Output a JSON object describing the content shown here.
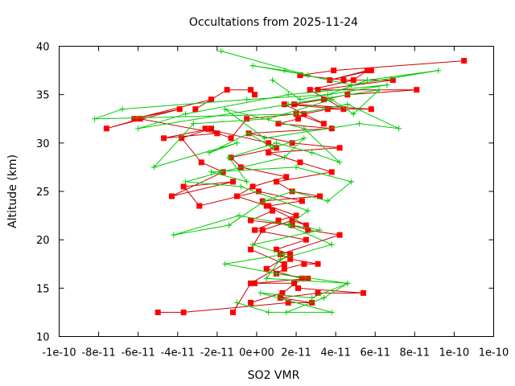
{
  "chart_data": {
    "type": "line",
    "title": "Occultations from 2025-11-24",
    "xlabel": "SO2 VMR",
    "ylabel": "Altitude (km)",
    "xlim": [
      -1e-10,
      1.2e-10
    ],
    "ylim": [
      10,
      40
    ],
    "x_ticks": [
      "-1e-10",
      "-8e-11",
      "-6e-11",
      "-4e-11",
      "-2e-11",
      "0e+00",
      "2e-11",
      "4e-11",
      "6e-11",
      "8e-11",
      "1e-10",
      "1e-10"
    ],
    "y_ticks": [
      "10",
      "15",
      "20",
      "25",
      "30",
      "35",
      "40"
    ],
    "grid": false,
    "legend": "none",
    "series": [
      {
        "marker": "square",
        "color": "#ff0000",
        "line_color": "#cc0000",
        "x": [
          -5e-11,
          -3.7e-11,
          1.6e-11,
          2.8e-11,
          1.2e-11,
          3.1e-11,
          5.4e-11,
          2.1e-11,
          1.9e-11,
          -1e-12,
          2.6e-11,
          1e-11,
          1.4e-11,
          2.4e-11,
          3.1e-11,
          1.7e-11,
          1.2e-11,
          4.2e-11,
          2.6e-11,
          1.8e-11,
          -3e-12,
          8e-12,
          3e-12,
          3.2e-11,
          1.8e-11,
          1e-11,
          3.8e-11,
          2.2e-11,
          6e-12,
          4.2e-11,
          1.8e-11,
          -4e-12,
          3.8e-11,
          1.1e-11,
          2.1e-11,
          2.4e-11,
          3.6e-11,
          5.8e-11,
          1.9e-11,
          3.4e-11,
          4.6e-11,
          8.1e-11,
          3.1e-11,
          6.9e-11,
          4.4e-11,
          2.2e-11,
          3.9e-11,
          1.05e-10
        ],
        "y": [
          12.5,
          12.5,
          13.5,
          13.5,
          14.0,
          14.5,
          14.5,
          15.0,
          15.5,
          15.5,
          16.0,
          16.5,
          17.0,
          17.5,
          17.5,
          18.0,
          18.5,
          20.5,
          21.0,
          21.5,
          22.0,
          23.0,
          24.0,
          24.5,
          25.0,
          26.0,
          27.0,
          28.0,
          29.0,
          29.5,
          30.0,
          31.0,
          31.5,
          32.0,
          32.5,
          33.0,
          33.5,
          33.5,
          34.0,
          34.5,
          35.0,
          35.5,
          35.5,
          36.5,
          36.5,
          37.0,
          37.5,
          38.5
        ]
      },
      {
        "marker": "square",
        "color": "#ff0000",
        "line_color": "#cc0000",
        "x": [
          -3e-12,
          1.3e-11,
          2.3e-11,
          5e-12,
          1.7e-11,
          1e-11,
          2.5e-11,
          -1e-12,
          1.1e-11,
          2e-11,
          6e-12,
          2.3e-11,
          1e-12,
          -2.9e-11,
          -3.7e-11,
          -1.2e-11,
          -4.3e-11,
          -1.7e-11,
          -2.8e-11,
          -3.8e-11,
          -2.3e-11,
          -4.7e-11,
          -2e-11,
          -5.9e-11,
          -7.6e-11,
          -3.9e-11,
          -6.2e-11,
          -2.3e-11,
          -3.1e-11,
          -1.5e-11,
          -3e-12,
          -1e-12
        ],
        "y": [
          13.5,
          14.5,
          16.0,
          17.0,
          18.5,
          19.0,
          20.0,
          21.0,
          22.0,
          22.5,
          23.5,
          24.0,
          25.0,
          23.5,
          25.5,
          26.0,
          24.5,
          27.0,
          28.0,
          30.5,
          31.5,
          30.5,
          31.0,
          32.5,
          31.5,
          33.5,
          32.5,
          34.5,
          33.5,
          35.5,
          35.5,
          35.0
        ]
      },
      {
        "marker": "square",
        "color": "#ff0000",
        "line_color": "#cc0000",
        "x": [
          -1.2e-11,
          -3e-12,
          1.4e-11,
          -3e-12,
          3e-12,
          1.8e-11,
          2.5e-11,
          5e-12,
          -1e-11,
          -2e-12,
          1.5e-11,
          -8e-12,
          -1.3e-11,
          1e-11,
          6e-12,
          -2.6e-11,
          -1.3e-11,
          -5e-12,
          2e-11,
          3.4e-11,
          1.4e-11,
          4.4e-11,
          2.7e-11,
          4.9e-11,
          5.6e-11,
          3.7e-11,
          5.8e-11
        ],
        "y": [
          12.5,
          15.5,
          17.5,
          19.0,
          21.0,
          22.0,
          21.5,
          23.5,
          24.5,
          25.5,
          26.5,
          27.5,
          28.5,
          29.5,
          30.0,
          31.5,
          30.5,
          32.5,
          33.0,
          32.0,
          34.0,
          33.5,
          35.5,
          36.5,
          37.5,
          36.5,
          37.5
        ]
      },
      {
        "marker": "plus",
        "color": "#00cc00",
        "line_color": "#00cc00",
        "x": [
          -1e-11,
          6e-12,
          3.8e-11,
          2e-12,
          2.8e-11,
          4.6e-11,
          1e-11,
          -1.6e-11,
          1.4e-11,
          -2e-12,
          3.2e-11,
          -9e-12,
          -4.2e-11,
          -1.4e-11,
          4e-12,
          1.8e-11,
          3.6e-11,
          4.8e-11,
          2e-11,
          -2.3e-11,
          -5e-12,
          -1.4e-11,
          1e-11,
          2.8e-11,
          4.2e-11,
          2.4e-11,
          -1.6e-11,
          4e-12,
          5.2e-11,
          7.2e-11,
          4.6e-11,
          2e-11,
          -8.2e-11,
          -6.8e-11,
          -5e-12,
          3.6e-11,
          5.6e-11,
          9.2e-11,
          4.8e-11,
          1.4e-11,
          -2e-12,
          2.6e-11,
          -1.8e-11
        ],
        "y": [
          13.5,
          12.5,
          12.5,
          14.5,
          14.0,
          15.5,
          16.5,
          17.5,
          18.5,
          19.5,
          21.0,
          22.5,
          20.5,
          21.5,
          24.0,
          25.0,
          24.0,
          26.0,
          27.5,
          27.0,
          26.0,
          28.5,
          30.0,
          29.0,
          28.0,
          31.5,
          33.5,
          30.5,
          32.0,
          31.5,
          34.0,
          33.0,
          32.5,
          33.5,
          34.5,
          35.0,
          36.5,
          37.5,
          36.0,
          37.5,
          38.0,
          37.0,
          39.5
        ]
      },
      {
        "marker": "plus",
        "color": "#00cc00",
        "line_color": "#00cc00",
        "x": [
          1.5e-11,
          3.4e-11,
          4.6e-11,
          5e-12,
          1.2e-11,
          3.8e-11,
          1.6e-11,
          2.6e-11,
          -8e-12,
          -3.6e-11,
          -1.8e-11,
          1.4e-11,
          2.4e-11,
          8e-12,
          -4e-12,
          -2.4e-11,
          -1e-11,
          -5.2e-11,
          -3.2e-11,
          6e-12,
          3.8e-11,
          4.9e-11,
          6.2e-11,
          1.6e-11,
          -6e-11,
          -3.6e-11,
          1.6e-11,
          6.6e-11,
          2.2e-11,
          8e-12
        ],
        "y": [
          12.5,
          14.0,
          15.5,
          16.0,
          18.0,
          19.5,
          21.5,
          23.0,
          25.5,
          26.0,
          27.0,
          28.5,
          30.5,
          29.5,
          31.0,
          29.0,
          30.0,
          27.5,
          32.0,
          32.5,
          34.5,
          33.0,
          35.5,
          34.0,
          31.5,
          33.0,
          35.0,
          36.0,
          34.5,
          36.5
        ]
      }
    ]
  }
}
